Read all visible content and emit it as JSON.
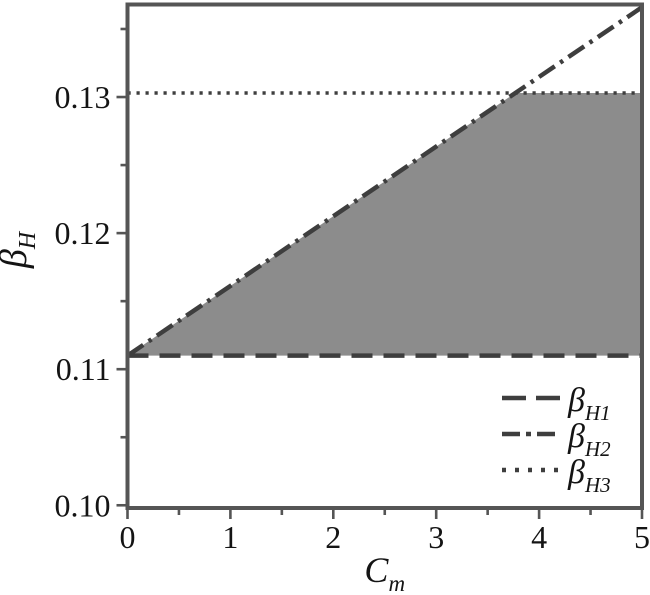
{
  "style": {
    "background": "#ffffff",
    "fill_color": "#8c8c8c",
    "line_color": "#3e3e3e",
    "spine_color": "#555555",
    "text_color": "#141414"
  },
  "chart_data": {
    "type": "line",
    "title": "",
    "xlabel": {
      "base": "C",
      "sub": "m"
    },
    "ylabel": {
      "base": "β",
      "sub": "H"
    },
    "xlim": [
      0,
      5
    ],
    "ylim": [
      0.0998,
      0.1368
    ],
    "grid": false,
    "x_major_ticks": [
      0,
      1,
      2,
      3,
      4,
      5
    ],
    "x_major_tick_labels": [
      "0",
      "1",
      "2",
      "3",
      "4",
      "5"
    ],
    "x_minor_ticks": [
      0.5,
      1.5,
      2.5,
      3.5,
      4.5
    ],
    "y_major_ticks": [
      0.1,
      0.11,
      0.12,
      0.13
    ],
    "y_major_tick_labels": [
      "0.10",
      "0.11",
      "0.12",
      "0.13"
    ],
    "y_minor_ticks": [
      0.105,
      0.115,
      0.125,
      0.135
    ],
    "series": [
      {
        "name": "beta-h1",
        "label": {
          "base": "β",
          "sub": "H1"
        },
        "style": "dashed",
        "points": [
          [
            0,
            0.111
          ],
          [
            5,
            0.111
          ]
        ]
      },
      {
        "name": "beta-h2",
        "label": {
          "base": "β",
          "sub": "H2"
        },
        "style": "dashdot",
        "points": [
          [
            0,
            0.111
          ],
          [
            5,
            0.1366
          ]
        ]
      },
      {
        "name": "beta-h3",
        "label": {
          "base": "β",
          "sub": "H3"
        },
        "style": "dotted",
        "points": [
          [
            0,
            0.1303
          ],
          [
            5,
            0.1303
          ]
        ]
      }
    ],
    "shaded_region": {
      "color": "#8c8c8c",
      "vertices": [
        [
          0,
          0.111
        ],
        [
          3.77,
          0.1303
        ],
        [
          5,
          0.1303
        ],
        [
          5,
          0.111
        ]
      ]
    },
    "legend": {
      "position": "lower right"
    }
  }
}
